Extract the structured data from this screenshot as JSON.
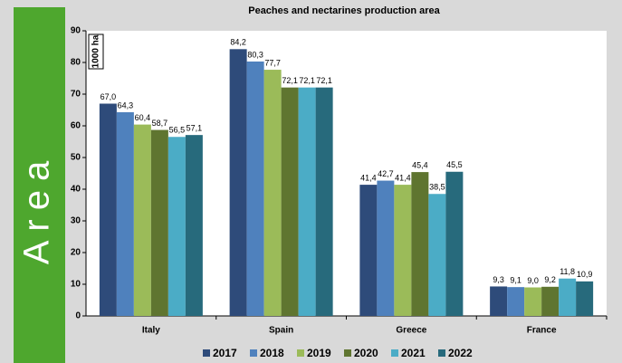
{
  "sidebar_label": "Area",
  "chart_data": {
    "type": "bar",
    "title": "Peaches and nectarines production area",
    "unit_label": "1000 ha",
    "categories": [
      "Italy",
      "Spain",
      "Greece",
      "France"
    ],
    "series": [
      {
        "name": "2017",
        "color": "#2e4b7a",
        "values": [
          67.0,
          84.2,
          41.4,
          9.3
        ],
        "value_labels": [
          "67,0",
          "84,2",
          "41,4",
          "9,3"
        ]
      },
      {
        "name": "2018",
        "color": "#4f81bd",
        "values": [
          64.3,
          80.3,
          42.7,
          9.1
        ],
        "value_labels": [
          "64,3",
          "80,3",
          "42,7",
          "9,1"
        ]
      },
      {
        "name": "2019",
        "color": "#9bbb59",
        "values": [
          60.4,
          77.7,
          41.4,
          9.0
        ],
        "value_labels": [
          "60,4",
          "77,7",
          "41,4",
          "9,0"
        ]
      },
      {
        "name": "2020",
        "color": "#5f7530",
        "values": [
          58.7,
          72.1,
          45.4,
          9.2
        ],
        "value_labels": [
          "58,7",
          "72,1",
          "45,4",
          "9,2"
        ]
      },
      {
        "name": "2021",
        "color": "#4bacc6",
        "values": [
          56.5,
          72.1,
          38.5,
          11.8
        ],
        "value_labels": [
          "56,5",
          "72,1",
          "38,5",
          "11,8"
        ]
      },
      {
        "name": "2022",
        "color": "#276a7c",
        "values": [
          57.1,
          72.1,
          45.5,
          10.9
        ],
        "value_labels": [
          "57,1",
          "72,1",
          "45,5",
          "10,9"
        ]
      }
    ],
    "ylim": [
      0,
      90
    ],
    "yticks": [
      0,
      10,
      20,
      30,
      40,
      50,
      60,
      70,
      80,
      90
    ],
    "grid": false,
    "legend": "bottom"
  }
}
